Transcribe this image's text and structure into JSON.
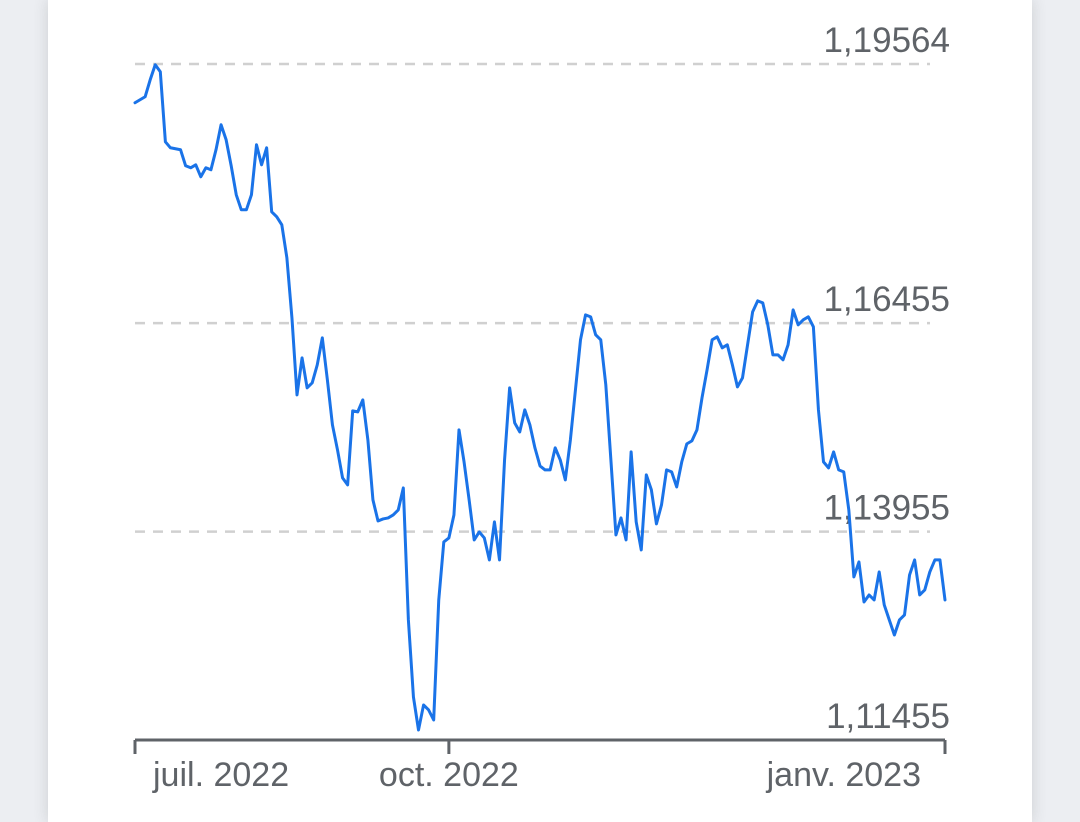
{
  "chart_data": {
    "type": "line",
    "color": "#1a73e8",
    "grid": true,
    "ylim": [
      1.11455,
      1.19564
    ],
    "yticks": [
      {
        "value": 1.19564,
        "label": "1,19564"
      },
      {
        "value": 1.16455,
        "label": "1,16455"
      },
      {
        "value": 1.13955,
        "label": "1,13955"
      },
      {
        "value": 1.11455,
        "label": "1,11455"
      }
    ],
    "categories": [
      "juil. 2022",
      null,
      null,
      null,
      null,
      null,
      null,
      null,
      null,
      null,
      null,
      null,
      null,
      null,
      null,
      null,
      null,
      null,
      null,
      null,
      null,
      null,
      null,
      null,
      null,
      null,
      null,
      null,
      null,
      null,
      null,
      null,
      null,
      null,
      null,
      null,
      null,
      null,
      null,
      null,
      null,
      null,
      null,
      null,
      null,
      null,
      null,
      null,
      null,
      null,
      null,
      null,
      null,
      null,
      null,
      null,
      null,
      null,
      null,
      null,
      null,
      null,
      "oct. 2022",
      null,
      null,
      null,
      null,
      null,
      null,
      null,
      null,
      null,
      null,
      null,
      null,
      null,
      null,
      null,
      null,
      null,
      null,
      null,
      null,
      null,
      null,
      null,
      null,
      null,
      null,
      null,
      null,
      null,
      null,
      null,
      null,
      null,
      null,
      null,
      null,
      null,
      null,
      null,
      null,
      null,
      null,
      null,
      null,
      null,
      null,
      null,
      null,
      null,
      null,
      null,
      null,
      null,
      null,
      null,
      null,
      null,
      null,
      null,
      null,
      null,
      null,
      null,
      null,
      null,
      null,
      null,
      null,
      null,
      null,
      null,
      null,
      null,
      null,
      null,
      null,
      null,
      null,
      null,
      null,
      null,
      null,
      null,
      null,
      null,
      null,
      null,
      null,
      null,
      null,
      null,
      null,
      null,
      null,
      null,
      null,
      null,
      "janv. 2023"
    ],
    "values": [
      1.19099,
      1.19135,
      1.19171,
      1.19375,
      1.19555,
      1.19471,
      1.18631,
      1.18559,
      1.18547,
      1.18535,
      1.18343,
      1.18319,
      1.18355,
      1.18211,
      1.18319,
      1.18295,
      1.18535,
      1.18835,
      1.18655,
      1.18343,
      1.17995,
      1.17815,
      1.17815,
      1.17995,
      1.18595,
      1.18355,
      1.18559,
      1.17791,
      1.17731,
      1.17635,
      1.17239,
      1.16519,
      1.15595,
      1.16039,
      1.15679,
      1.15739,
      1.15955,
      1.16279,
      1.15775,
      1.15235,
      1.14935,
      1.14599,
      1.14515,
      1.15403,
      1.15391,
      1.15535,
      1.15055,
      1.14335,
      1.14083,
      1.14107,
      1.14119,
      1.14155,
      1.14215,
      1.14479,
      1.12895,
      1.11971,
      1.11575,
      1.11875,
      1.11815,
      1.11695,
      1.13135,
      1.13831,
      1.13879,
      1.14155,
      1.15175,
      1.14791,
      1.14335,
      1.13855,
      1.13951,
      1.13879,
      1.13615,
      1.14071,
      1.13615,
      1.14815,
      1.15679,
      1.15259,
      1.15151,
      1.15415,
      1.15235,
      1.14959,
      1.14743,
      1.14695,
      1.14695,
      1.14959,
      1.14815,
      1.14575,
      1.15055,
      1.15655,
      1.16255,
      1.16555,
      1.16531,
      1.16315,
      1.16255,
      1.15715,
      1.14815,
      1.13915,
      1.14119,
      1.13855,
      1.14911,
      1.14071,
      1.13735,
      1.14635,
      1.14455,
      1.14047,
      1.14275,
      1.14695,
      1.14671,
      1.14491,
      1.14791,
      1.15007,
      1.15043,
      1.15175,
      1.15559,
      1.15895,
      1.16255,
      1.16291,
      1.16159,
      1.16195,
      1.15955,
      1.15691,
      1.15799,
      1.16195,
      1.16591,
      1.16723,
      1.16699,
      1.16435,
      1.16075,
      1.16075,
      1.16015,
      1.16195,
      1.16615,
      1.16435,
      1.16495,
      1.16531,
      1.16411,
      1.15415,
      1.14791,
      1.14719,
      1.14911,
      1.14695,
      1.14671,
      1.14215,
      1.13411,
      1.13591,
      1.13111,
      1.13195,
      1.13135,
      1.13471,
      1.13075,
      1.12895,
      1.12715,
      1.12895,
      1.12955,
      1.13435,
      1.13615,
      1.13195,
      1.13255,
      1.13471,
      1.13615,
      1.13615,
      1.13135
    ]
  }
}
